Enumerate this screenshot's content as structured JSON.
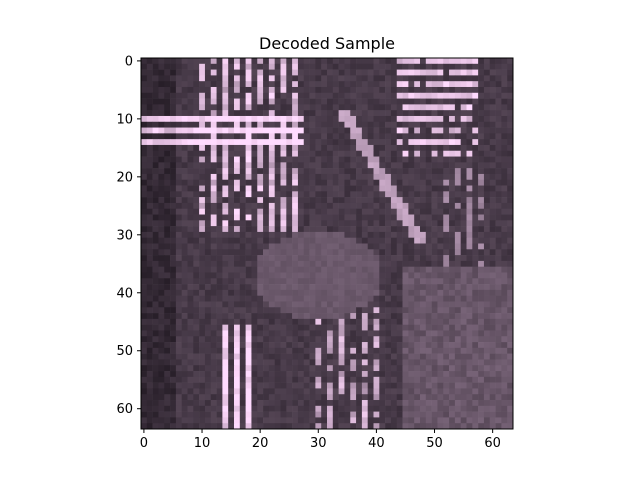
{
  "chart_data": {
    "type": "heatmap",
    "title": "Decoded Sample",
    "xlabel": "",
    "ylabel": "",
    "image_size": [
      64,
      64
    ],
    "xlim": [
      -0.5,
      63.5
    ],
    "ylim": [
      63.5,
      -0.5
    ],
    "x_ticks": [
      0,
      10,
      20,
      30,
      40,
      50,
      60
    ],
    "y_ticks": [
      0,
      10,
      20,
      30,
      40,
      50,
      60
    ],
    "x_tick_labels": [
      "0",
      "10",
      "20",
      "30",
      "40",
      "50",
      "60"
    ],
    "y_tick_labels": [
      "0",
      "10",
      "20",
      "30",
      "40",
      "50",
      "60"
    ],
    "grid": false,
    "colors": {
      "base": "#3a2a3a",
      "dark": "#140e16",
      "mid": "#6a5868",
      "light": "#a898a8",
      "bright": "#f4eef6",
      "axes": "#000000"
    }
  }
}
